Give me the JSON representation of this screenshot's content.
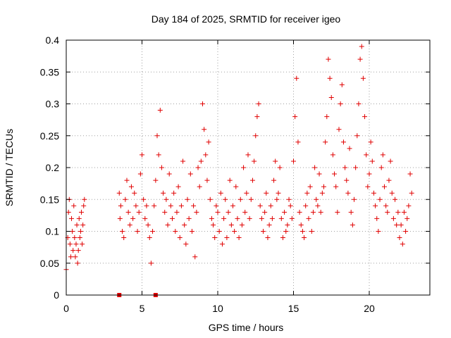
{
  "chart_data": {
    "type": "scatter",
    "title": "Day 184 of 2025, SRMTID for receiver igeo",
    "xlabel": "GPS time / hours",
    "ylabel": "SRMTID / TECUs",
    "xlim": [
      0,
      24
    ],
    "ylim": [
      0,
      0.4
    ],
    "xticks": [
      0,
      5,
      10,
      15,
      20
    ],
    "xtick_labels": [
      "0",
      "5",
      "10",
      "15",
      "20"
    ],
    "yticks": [
      0,
      0.05,
      0.1,
      0.15,
      0.2,
      0.25,
      0.3,
      0.35,
      0.4
    ],
    "ytick_labels": [
      "0",
      "0.05",
      "0.1",
      "0.15",
      "0.2",
      "0.25",
      "0.3",
      "0.35",
      "0.4"
    ],
    "grid": true,
    "marker": "+",
    "color": "#e00000",
    "series": [
      {
        "name": "SRMTID",
        "x": [
          0.0,
          0.1,
          0.15,
          0.2,
          0.25,
          0.3,
          0.35,
          0.4,
          0.45,
          0.5,
          0.55,
          0.6,
          0.65,
          0.7,
          0.75,
          0.8,
          0.85,
          0.9,
          0.95,
          1.0,
          1.05,
          1.1,
          1.15,
          1.2,
          3.5,
          3.55,
          3.6,
          3.7,
          3.8,
          3.9,
          4.0,
          4.1,
          4.2,
          4.3,
          4.4,
          4.5,
          4.6,
          4.7,
          4.8,
          4.9,
          5.0,
          5.1,
          5.2,
          5.3,
          5.4,
          5.5,
          5.6,
          5.7,
          5.8,
          5.9,
          6.0,
          6.1,
          6.2,
          6.3,
          6.4,
          6.5,
          6.6,
          6.7,
          6.8,
          6.9,
          7.0,
          7.1,
          7.2,
          7.3,
          7.4,
          7.5,
          7.6,
          7.7,
          7.8,
          7.9,
          8.0,
          8.1,
          8.2,
          8.3,
          8.4,
          8.5,
          8.6,
          8.7,
          8.8,
          8.9,
          9.0,
          9.1,
          9.2,
          9.3,
          9.4,
          9.5,
          9.6,
          9.7,
          9.8,
          9.9,
          10.0,
          10.1,
          10.2,
          10.3,
          10.4,
          10.5,
          10.6,
          10.7,
          10.8,
          10.9,
          11.0,
          11.1,
          11.2,
          11.3,
          11.4,
          11.5,
          11.6,
          11.7,
          11.8,
          11.9,
          12.0,
          12.1,
          12.2,
          12.3,
          12.4,
          12.5,
          12.6,
          12.7,
          12.8,
          12.9,
          13.0,
          13.1,
          13.2,
          13.3,
          13.4,
          13.5,
          13.6,
          13.7,
          13.8,
          13.9,
          14.0,
          14.1,
          14.2,
          14.3,
          14.4,
          14.5,
          14.6,
          14.7,
          14.8,
          14.9,
          15.0,
          15.1,
          15.2,
          15.3,
          15.4,
          15.5,
          15.6,
          15.7,
          15.8,
          15.9,
          16.0,
          16.1,
          16.2,
          16.3,
          16.4,
          16.5,
          16.6,
          16.7,
          16.8,
          16.9,
          17.0,
          17.1,
          17.2,
          17.3,
          17.4,
          17.5,
          17.6,
          17.7,
          17.8,
          17.9,
          18.0,
          18.1,
          18.2,
          18.3,
          18.4,
          18.5,
          18.6,
          18.7,
          18.8,
          18.9,
          19.0,
          19.1,
          19.2,
          19.3,
          19.4,
          19.5,
          19.6,
          19.7,
          19.8,
          19.9,
          20.0,
          20.1,
          20.2,
          20.3,
          20.4,
          20.5,
          20.6,
          20.7,
          20.8,
          20.9,
          21.0,
          21.1,
          21.2,
          21.3,
          21.4,
          21.5,
          21.6,
          21.7,
          21.8,
          21.9,
          22.0,
          22.1,
          22.2,
          22.3,
          22.4,
          22.5,
          22.6,
          22.7,
          22.8
        ],
        "y": [
          0.04,
          0.09,
          0.13,
          0.15,
          0.08,
          0.06,
          0.12,
          0.1,
          0.07,
          0.14,
          0.09,
          0.06,
          0.08,
          0.11,
          0.05,
          0.07,
          0.12,
          0.09,
          0.1,
          0.13,
          0.08,
          0.11,
          0.14,
          0.15,
          0.16,
          0.12,
          0.14,
          0.1,
          0.09,
          0.15,
          0.18,
          0.13,
          0.11,
          0.17,
          0.12,
          0.16,
          0.14,
          0.1,
          0.13,
          0.19,
          0.22,
          0.15,
          0.12,
          0.14,
          0.11,
          0.09,
          0.05,
          0.1,
          0.14,
          0.18,
          0.25,
          0.22,
          0.29,
          0.2,
          0.16,
          0.13,
          0.15,
          0.11,
          0.19,
          0.14,
          0.12,
          0.16,
          0.1,
          0.13,
          0.17,
          0.09,
          0.14,
          0.21,
          0.11,
          0.08,
          0.15,
          0.12,
          0.19,
          0.1,
          0.14,
          0.06,
          0.13,
          0.2,
          0.17,
          0.21,
          0.3,
          0.26,
          0.22,
          0.18,
          0.24,
          0.15,
          0.12,
          0.11,
          0.09,
          0.14,
          0.13,
          0.1,
          0.16,
          0.08,
          0.12,
          0.15,
          0.09,
          0.13,
          0.18,
          0.11,
          0.14,
          0.1,
          0.17,
          0.12,
          0.09,
          0.15,
          0.11,
          0.2,
          0.13,
          0.16,
          0.22,
          0.12,
          0.15,
          0.18,
          0.21,
          0.25,
          0.28,
          0.3,
          0.14,
          0.12,
          0.1,
          0.13,
          0.16,
          0.09,
          0.11,
          0.14,
          0.12,
          0.18,
          0.21,
          0.15,
          0.16,
          0.2,
          0.12,
          0.09,
          0.13,
          0.1,
          0.11,
          0.15,
          0.14,
          0.12,
          0.21,
          0.28,
          0.34,
          0.24,
          0.13,
          0.11,
          0.1,
          0.09,
          0.14,
          0.16,
          0.12,
          0.17,
          0.1,
          0.13,
          0.2,
          0.15,
          0.14,
          0.19,
          0.13,
          0.16,
          0.17,
          0.24,
          0.28,
          0.37,
          0.34,
          0.31,
          0.22,
          0.19,
          0.17,
          0.13,
          0.26,
          0.3,
          0.33,
          0.24,
          0.2,
          0.18,
          0.16,
          0.23,
          0.13,
          0.11,
          0.15,
          0.2,
          0.25,
          0.3,
          0.37,
          0.39,
          0.34,
          0.28,
          0.22,
          0.17,
          0.19,
          0.24,
          0.21,
          0.16,
          0.14,
          0.12,
          0.1,
          0.15,
          0.2,
          0.22,
          0.17,
          0.14,
          0.13,
          0.18,
          0.21,
          0.16,
          0.12,
          0.15,
          0.11,
          0.13,
          0.09,
          0.11,
          0.08,
          0.13,
          0.1,
          0.12,
          0.14,
          0.19,
          0.16
        ]
      }
    ],
    "gap_markers": [
      {
        "x": 3.5,
        "y": 0.0
      },
      {
        "x": 5.9,
        "y": 0.0
      }
    ]
  }
}
